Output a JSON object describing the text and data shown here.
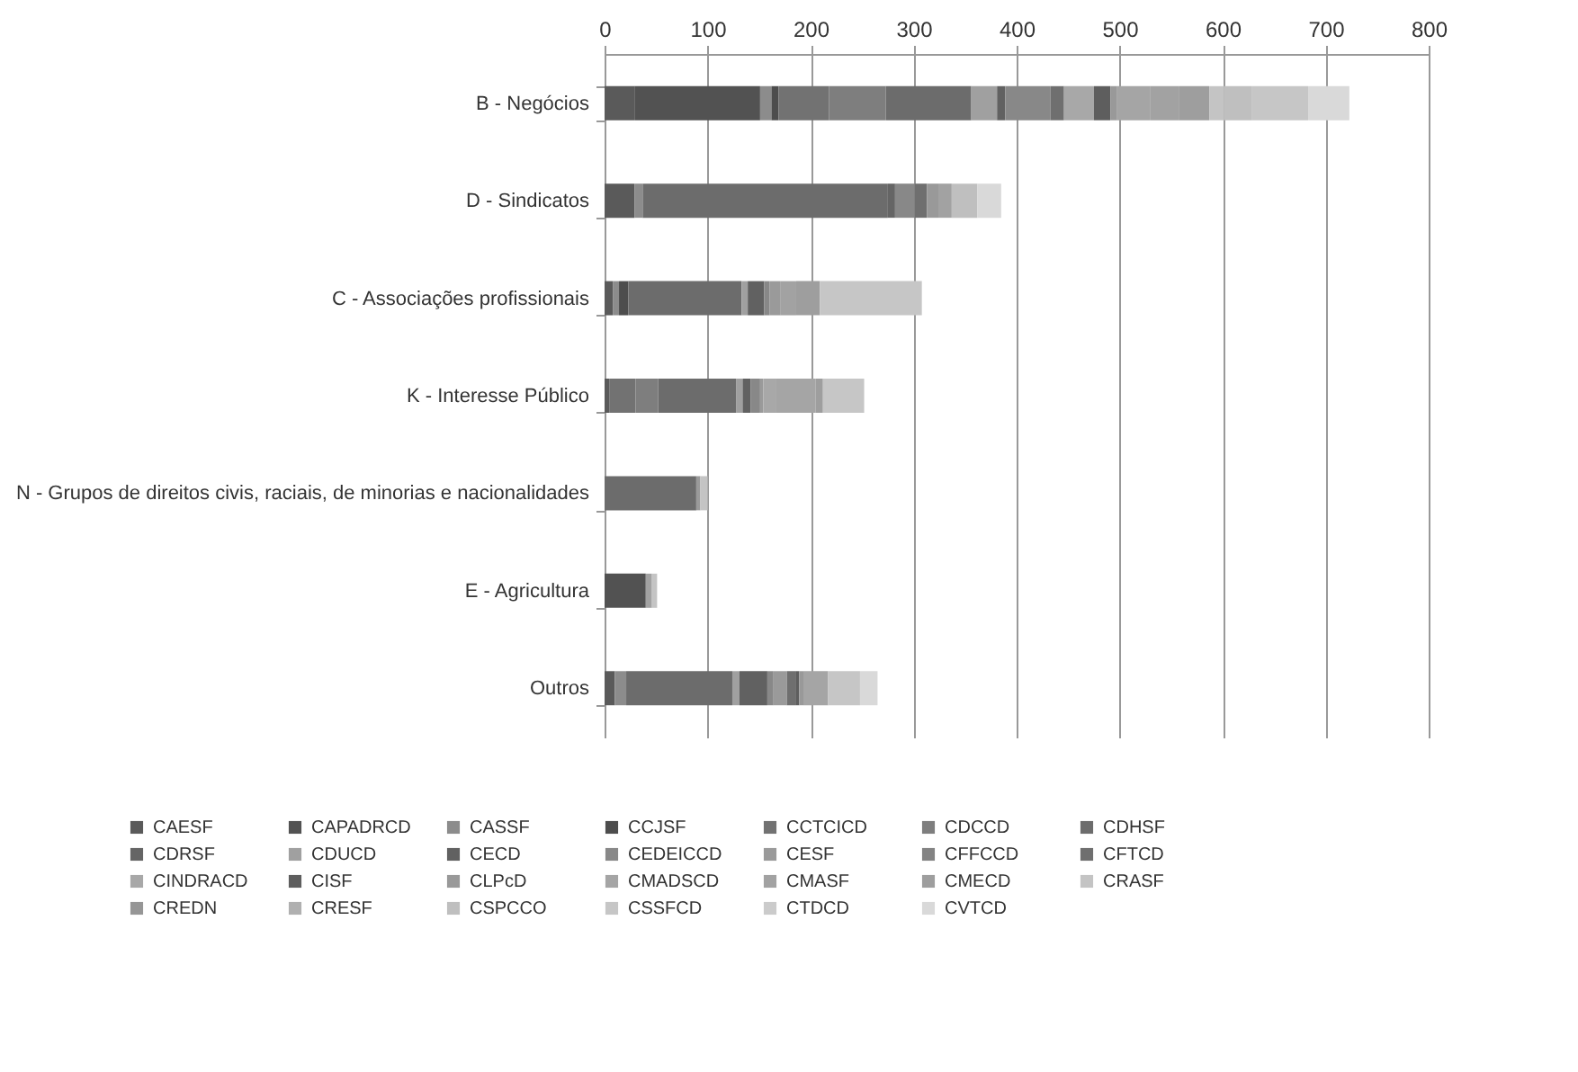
{
  "chart_data": {
    "type": "bar",
    "orientation": "horizontal",
    "stacked": true,
    "grid": "x",
    "legend": "bottom",
    "categories": [
      "B - Negócios",
      "D - Sindicatos",
      "C - Associações profissionais",
      "K - Interesse Público",
      "N - Grupos de direitos civis, raciais, de minorias e nacionalidades",
      "E - Agricultura",
      "Outros"
    ],
    "xlim": [
      0,
      800
    ],
    "xticks": [
      0,
      100,
      200,
      300,
      400,
      500,
      600,
      700,
      800
    ],
    "series": [
      {
        "name": "CAESF",
        "color": "#5a5a5a",
        "values": [
          29,
          29,
          8,
          5,
          null,
          null,
          10
        ]
      },
      {
        "name": "CAPADRCD",
        "color": "#525252",
        "values": [
          122,
          null,
          null,
          null,
          null,
          40,
          null
        ]
      },
      {
        "name": "CASSF",
        "color": "#8c8c8c",
        "values": [
          11,
          8,
          6,
          null,
          null,
          null,
          11
        ]
      },
      {
        "name": "CCJSF",
        "color": "#4d4d4d",
        "values": [
          7,
          null,
          9,
          null,
          null,
          null,
          null
        ]
      },
      {
        "name": "CCTCICD",
        "color": "#727272",
        "values": [
          49,
          null,
          null,
          25,
          null,
          null,
          null
        ]
      },
      {
        "name": "CDCCD",
        "color": "#7e7e7e",
        "values": [
          55,
          null,
          null,
          22,
          null,
          null,
          null
        ]
      },
      {
        "name": "CDHSF",
        "color": "#6c6c6c",
        "values": [
          83,
          238,
          110,
          76,
          89,
          null,
          103
        ]
      },
      {
        "name": "CDRSF",
        "color": "#656565",
        "values": [
          null,
          7,
          null,
          null,
          null,
          null,
          null
        ]
      },
      {
        "name": "CDUCD",
        "color": "#a0a0a0",
        "values": [
          25,
          null,
          6,
          6,
          null,
          null,
          7
        ]
      },
      {
        "name": "CECD",
        "color": "#616161",
        "values": [
          8,
          null,
          16,
          8,
          null,
          null,
          27
        ]
      },
      {
        "name": "CEDEICCD",
        "color": "#888888",
        "values": [
          44,
          19,
          5,
          9,
          null,
          null,
          6
        ]
      },
      {
        "name": "CESF",
        "color": "#9a9a9a",
        "values": [
          null,
          null,
          11,
          3,
          4,
          null,
          13
        ]
      },
      {
        "name": "CFFCCD",
        "color": "#838383",
        "values": [
          null,
          null,
          null,
          null,
          null,
          null,
          null
        ]
      },
      {
        "name": "CFTCD",
        "color": "#6f6f6f",
        "values": [
          13,
          12,
          null,
          null,
          null,
          null,
          9
        ]
      },
      {
        "name": "CINDRACD",
        "color": "#a8a8a8",
        "values": [
          29,
          null,
          null,
          12,
          null,
          null,
          null
        ]
      },
      {
        "name": "CISF",
        "color": "#5e5e5e",
        "values": [
          16,
          null,
          null,
          null,
          null,
          null,
          3
        ]
      },
      {
        "name": "CLPcD",
        "color": "#999999",
        "values": [
          6,
          11,
          null,
          null,
          null,
          null,
          4
        ]
      },
      {
        "name": "CMADSCD",
        "color": "#a5a5a5",
        "values": [
          33,
          null,
          null,
          39,
          null,
          null,
          24
        ]
      },
      {
        "name": "CMASF",
        "color": "#a2a2a2",
        "values": [
          28,
          13,
          15,
          null,
          null,
          6,
          null
        ]
      },
      {
        "name": "CMECD",
        "color": "#9e9e9e",
        "values": [
          29,
          null,
          23,
          7,
          null,
          null,
          null
        ]
      },
      {
        "name": "CRASF",
        "color": "#c4c4c4",
        "values": [
          14,
          null,
          null,
          null,
          7,
          5,
          null
        ]
      },
      {
        "name": "CREDN",
        "color": "#969696",
        "values": [
          null,
          null,
          null,
          null,
          null,
          null,
          null
        ]
      },
      {
        "name": "CRESF",
        "color": "#b0b0b0",
        "values": [
          null,
          null,
          null,
          null,
          null,
          null,
          null
        ]
      },
      {
        "name": "CSPCCO",
        "color": "#bfbfbf",
        "values": [
          27,
          25,
          null,
          null,
          null,
          null,
          null
        ]
      },
      {
        "name": "CSSFCD",
        "color": "#c6c6c6",
        "values": [
          55,
          null,
          99,
          40,
          null,
          null,
          31
        ]
      },
      {
        "name": "CTDCD",
        "color": "#cbcbcb",
        "values": [
          null,
          null,
          null,
          null,
          null,
          null,
          null
        ]
      },
      {
        "name": "CVTCD",
        "color": "#d9d9d9",
        "values": [
          40,
          23,
          null,
          null,
          null,
          null,
          17
        ]
      }
    ]
  }
}
